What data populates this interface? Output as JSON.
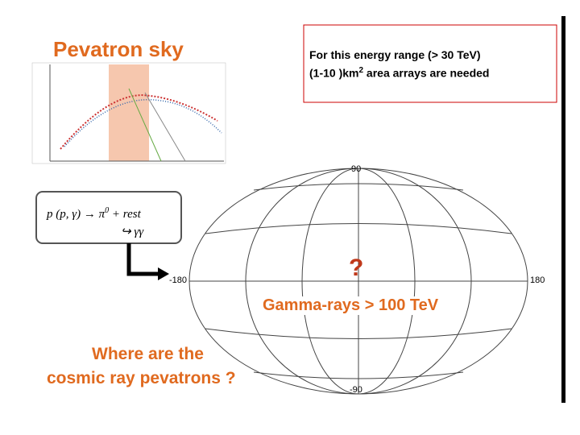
{
  "slide_title": "Pevatron sky",
  "note": {
    "line1": "For this energy range (> 30 TeV)",
    "line2_main": "(1-10 )km",
    "line2_sup": "2",
    "line2_rest": "area arrays are needed"
  },
  "formula": {
    "reaction": "p  (p,  γ)",
    "arrow": "→",
    "pion": "π",
    "pion_sup": "0",
    "rest": "+  rest",
    "decay": "↪  γγ"
  },
  "sky_map": {
    "top_label": "90",
    "left_label": "-180",
    "right_label": "180",
    "bottom_label": "-90",
    "mark": "?",
    "caption": "Gamma-rays > 100 TeV"
  },
  "question": {
    "line1": "Where are the",
    "line2": "cosmic ray pevatrons ?"
  }
}
